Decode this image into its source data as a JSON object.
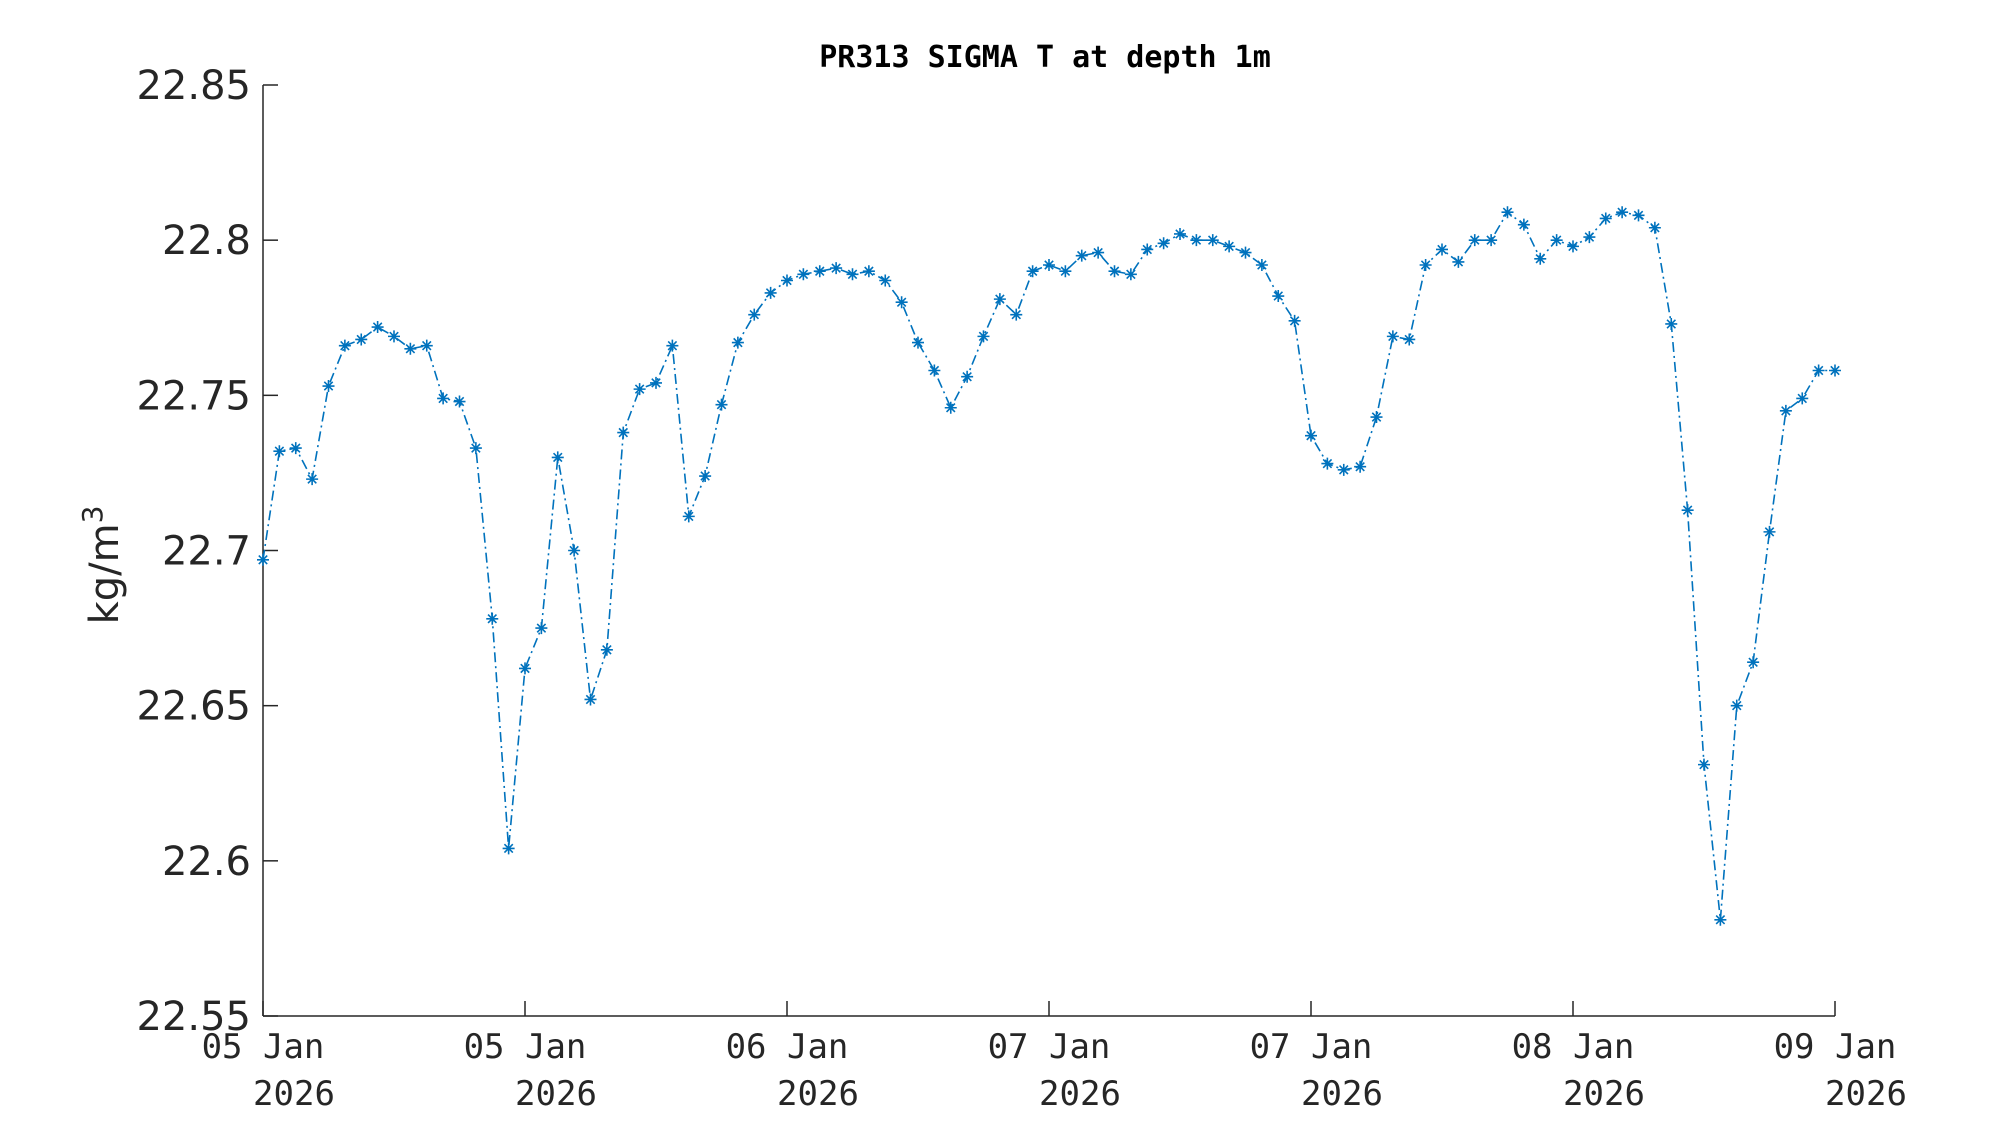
{
  "chart_data": {
    "type": "line",
    "title": "PR313 SIGMA T at depth 1m",
    "ylabel": "kg/m",
    "ylabel_superscript": "3",
    "xlabel": "",
    "ylim": [
      22.55,
      22.85
    ],
    "yticks": [
      22.55,
      22.6,
      22.65,
      22.7,
      22.75,
      22.8,
      22.85
    ],
    "ytick_labels": [
      "22.55",
      "22.6",
      "22.65",
      "22.7",
      "22.75",
      "22.8",
      "22.85"
    ],
    "xlim": [
      0,
      96
    ],
    "xticks": [
      0,
      16,
      32,
      48,
      64,
      80,
      96
    ],
    "xtick_labels": [
      [
        "05 Jan",
        "2026"
      ],
      [
        "05 Jan",
        "2026"
      ],
      [
        "06 Jan",
        "2026"
      ],
      [
        "07 Jan",
        "2026"
      ],
      [
        "07 Jan",
        "2026"
      ],
      [
        "08 Jan",
        "2026"
      ],
      [
        "09 Jan",
        "2026"
      ]
    ],
    "grid": false,
    "line_style": "dash-dot",
    "marker": "asterisk",
    "color": "#0072BD",
    "series": [
      {
        "x": [
          0,
          1,
          2,
          3,
          4,
          5,
          6,
          7,
          8,
          9,
          10,
          11,
          12,
          13,
          14,
          15,
          16,
          17,
          18,
          19,
          20,
          21,
          22,
          23,
          24,
          25,
          26,
          27,
          28,
          29,
          30,
          31,
          32,
          33,
          34,
          35,
          36,
          37,
          38,
          39,
          40,
          41,
          42,
          43,
          44,
          45,
          46,
          47,
          48,
          49,
          50,
          51,
          52,
          53,
          54,
          55,
          56,
          57,
          58,
          59,
          60,
          61,
          62,
          63,
          64,
          65,
          66,
          67,
          68,
          69,
          70,
          71,
          72,
          73,
          74,
          75,
          76,
          77,
          78,
          79,
          80,
          81,
          82,
          83,
          84,
          85,
          86,
          87,
          88,
          89,
          90,
          91,
          92,
          93,
          94,
          95,
          96
        ],
        "values": [
          22.697,
          22.732,
          22.733,
          22.723,
          22.753,
          22.766,
          22.768,
          22.772,
          22.769,
          22.765,
          22.766,
          22.749,
          22.748,
          22.733,
          22.678,
          22.604,
          22.662,
          22.675,
          22.73,
          22.7,
          22.652,
          22.668,
          22.738,
          22.752,
          22.754,
          22.766,
          22.711,
          22.724,
          22.747,
          22.767,
          22.776,
          22.783,
          22.787,
          22.789,
          22.79,
          22.791,
          22.789,
          22.79,
          22.787,
          22.78,
          22.767,
          22.758,
          22.746,
          22.756,
          22.769,
          22.781,
          22.776,
          22.79,
          22.792,
          22.79,
          22.795,
          22.796,
          22.79,
          22.789,
          22.797,
          22.799,
          22.802,
          22.8,
          22.8,
          22.798,
          22.796,
          22.792,
          22.782,
          22.774,
          22.737,
          22.728,
          22.726,
          22.727,
          22.743,
          22.769,
          22.768,
          22.792,
          22.797,
          22.793,
          22.8,
          22.8,
          22.809,
          22.805,
          22.794,
          22.8,
          22.798,
          22.801,
          22.807,
          22.809,
          22.808,
          22.804,
          22.773,
          22.713,
          22.631,
          22.581,
          22.65,
          22.664,
          22.706,
          22.745,
          22.749,
          22.758,
          22.758
        ]
      }
    ]
  }
}
